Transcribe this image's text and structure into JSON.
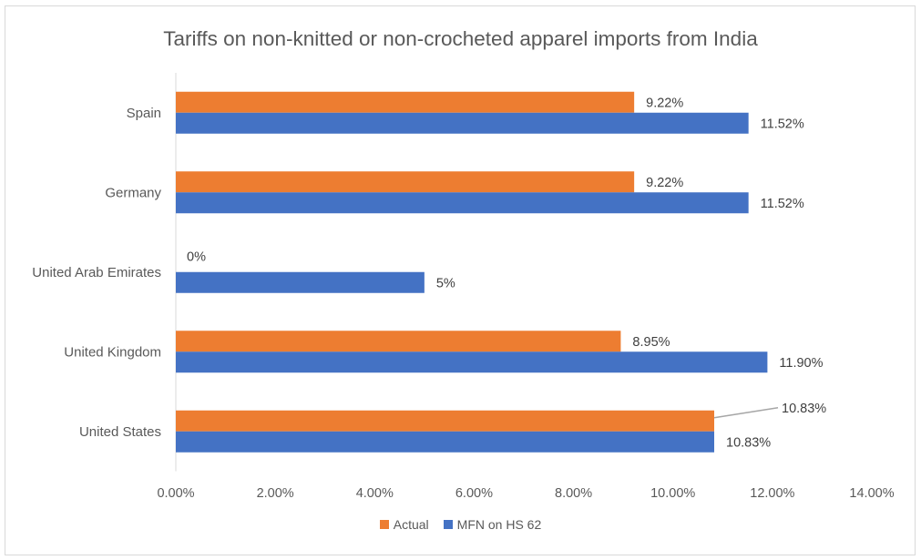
{
  "chart_data": {
    "type": "bar",
    "orientation": "horizontal",
    "title": "Tariffs on non-knitted or non-crocheted apparel imports from India",
    "categories": [
      "Spain",
      "Germany",
      "United Arab Emirates",
      "United Kingdom",
      "United States"
    ],
    "series": [
      {
        "name": "Actual",
        "color": "#ed7d31",
        "values": [
          9.22,
          9.22,
          0,
          8.95,
          10.83
        ],
        "labels": [
          "9.22%",
          "9.22%",
          "0%",
          "8.95%",
          "10.83%"
        ]
      },
      {
        "name": "MFN on HS 62",
        "color": "#4472c4",
        "values": [
          11.52,
          11.52,
          5,
          11.9,
          10.83
        ],
        "labels": [
          "11.52%",
          "11.52%",
          "5%",
          "11.90%",
          "10.83%"
        ]
      }
    ],
    "xlim": [
      0,
      14
    ],
    "x_ticks": [
      0,
      2,
      4,
      6,
      8,
      10,
      12,
      14
    ],
    "x_tick_labels": [
      "0.00%",
      "2.00%",
      "4.00%",
      "6.00%",
      "8.00%",
      "10.00%",
      "12.00%",
      "14.00%"
    ],
    "grid": false,
    "legend_position": "bottom"
  }
}
